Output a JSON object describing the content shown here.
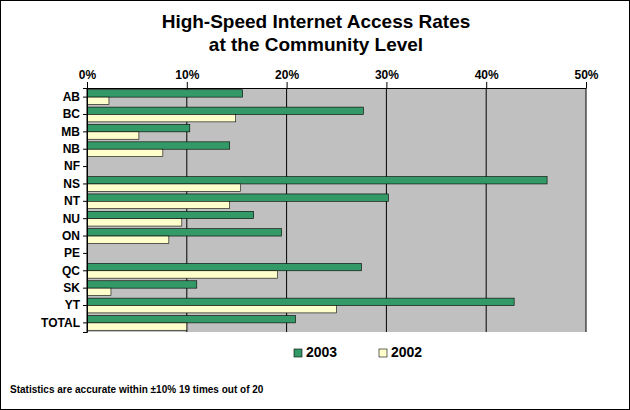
{
  "chart_data": {
    "type": "bar",
    "orientation": "horizontal",
    "title": "High-Speed Internet Access Rates at the Community Level",
    "categories": [
      "AB",
      "BC",
      "MB",
      "NB",
      "NF",
      "NS",
      "NT",
      "NU",
      "ON",
      "PE",
      "QC",
      "SK",
      "YT",
      "TOTAL"
    ],
    "series": [
      {
        "name": "2003",
        "color": "#339966",
        "values": [
          15.6,
          27.7,
          10.3,
          14.3,
          0,
          46.1,
          30.2,
          16.7,
          19.5,
          0,
          27.5,
          11.0,
          42.8,
          20.9
        ]
      },
      {
        "name": "2002",
        "color": "#ffffcc",
        "values": [
          2.2,
          14.9,
          5.2,
          7.6,
          0,
          15.4,
          14.3,
          9.5,
          8.2,
          0,
          19.1,
          2.4,
          25.0,
          10.0
        ]
      }
    ],
    "xlim": [
      0,
      50
    ],
    "xticks": [
      {
        "value": 0,
        "label": "0%"
      },
      {
        "value": 10,
        "label": "10%"
      },
      {
        "value": 20,
        "label": "20%"
      },
      {
        "value": 30,
        "label": "30%"
      },
      {
        "value": 40,
        "label": "40%"
      },
      {
        "value": 50,
        "label": "50%"
      }
    ],
    "grid": true,
    "legend": "bottom",
    "annotations": [
      "Statistics are accurate within ±10% 19 times out of 20"
    ]
  }
}
